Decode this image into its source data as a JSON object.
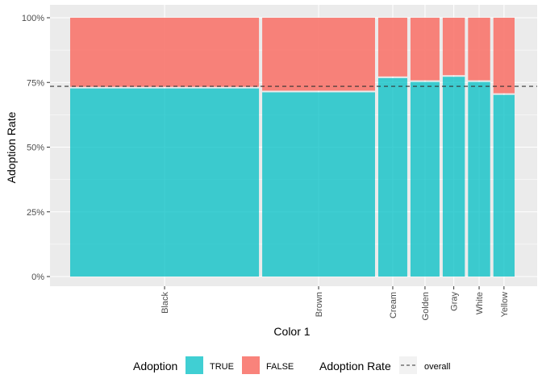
{
  "chart_data": {
    "type": "bar",
    "subtype": "mosaic (variable-width stacked, 100%)",
    "xlabel": "Color 1",
    "ylabel": "Adoption Rate",
    "ylim": [
      0,
      1
    ],
    "y_ticks": [
      0,
      0.25,
      0.5,
      0.75,
      1.0
    ],
    "y_tick_labels": [
      "0%",
      "25%",
      "50%",
      "75%",
      "100%"
    ],
    "categories": [
      "Black",
      "Brown",
      "Cream",
      "Golden",
      "Gray",
      "White",
      "Yellow"
    ],
    "category_share": [
      0.41,
      0.245,
      0.063,
      0.063,
      0.048,
      0.048,
      0.046
    ],
    "series": [
      {
        "name": "TRUE",
        "color": "#00BFC4",
        "values": [
          0.73,
          0.715,
          0.77,
          0.755,
          0.775,
          0.755,
          0.705
        ]
      },
      {
        "name": "FALSE",
        "color": "#F8766D",
        "values": [
          0.27,
          0.285,
          0.23,
          0.245,
          0.225,
          0.245,
          0.295
        ]
      }
    ],
    "reference_line": {
      "name": "overall",
      "value": 0.735,
      "style": "dashed"
    },
    "grid": true,
    "legend_position": "bottom",
    "legend": {
      "fill_title": "Adoption",
      "fill_items": [
        "TRUE",
        "FALSE"
      ],
      "line_title": "Adoption Rate",
      "line_items": [
        "overall"
      ]
    },
    "colors": {
      "panel_bg": "#EBEBEB",
      "grid": "#FFFFFF",
      "true_fill": "#00BFC4",
      "false_fill": "#F8766D"
    }
  }
}
